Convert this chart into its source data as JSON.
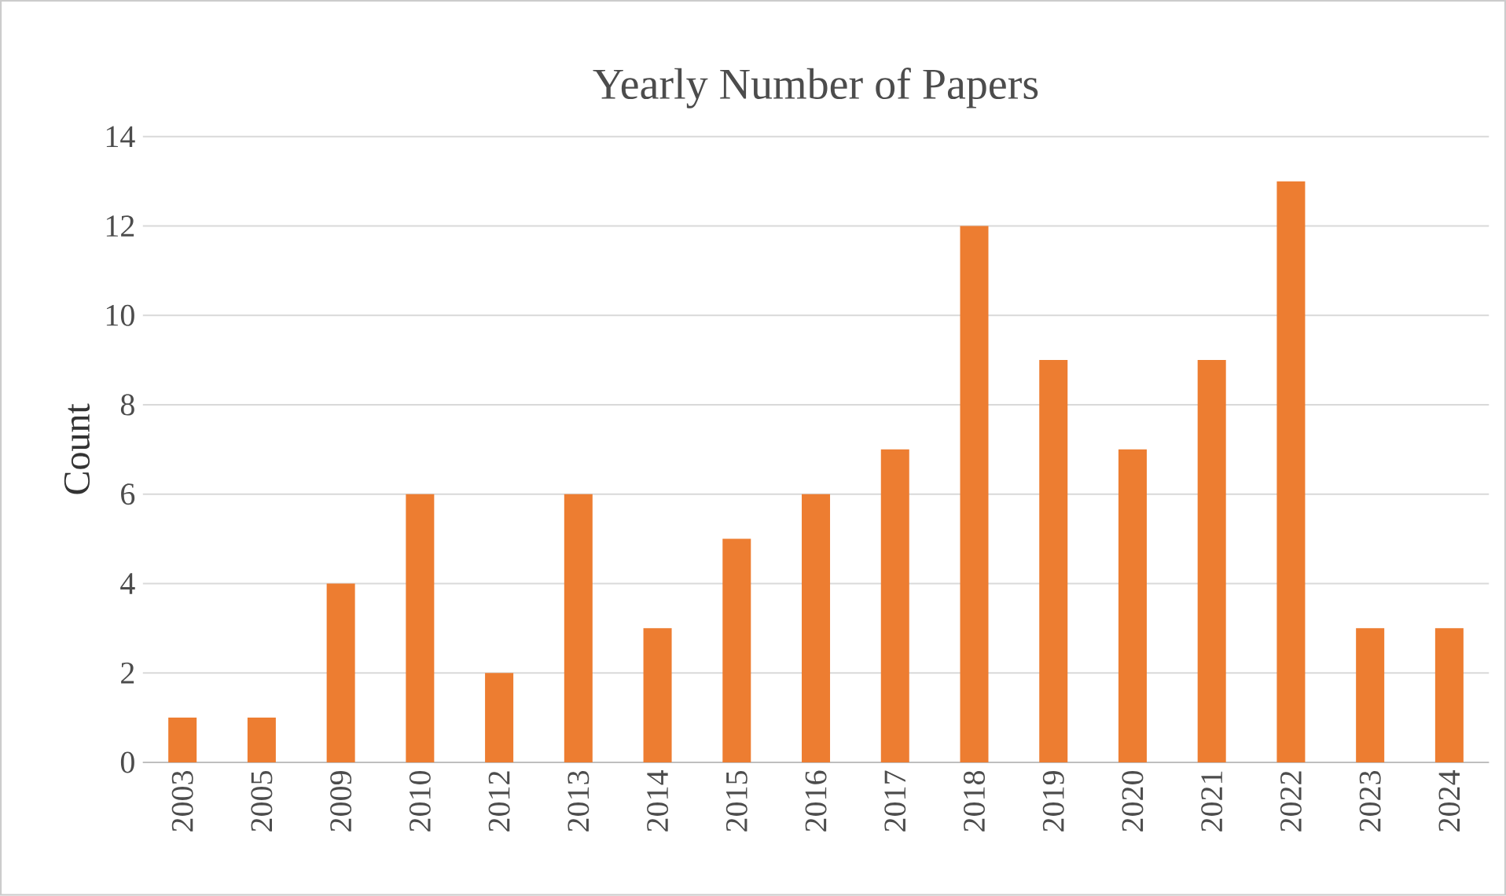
{
  "chart_data": {
    "type": "bar",
    "title": "Yearly Number of Papers",
    "ylabel": "Count",
    "categories": [
      "2003",
      "2005",
      "2009",
      "2010",
      "2012",
      "2013",
      "2014",
      "2015",
      "2016",
      "2017",
      "2018",
      "2019",
      "2020",
      "2021",
      "2022",
      "2023",
      "2024"
    ],
    "values": [
      1,
      1,
      4,
      6,
      2,
      6,
      3,
      5,
      6,
      7,
      12,
      9,
      7,
      9,
      13,
      3,
      3
    ],
    "color": "#ed7d31",
    "ylim": [
      0,
      14
    ],
    "yticks": [
      0,
      2,
      4,
      6,
      8,
      10,
      12,
      14
    ],
    "grid": "y"
  }
}
